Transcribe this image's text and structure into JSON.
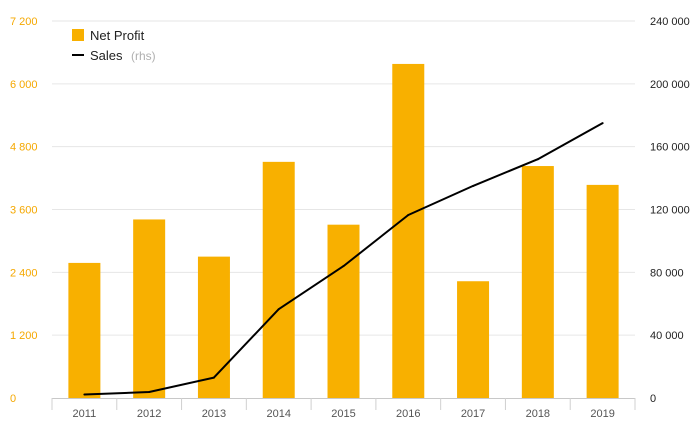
{
  "chart_data": {
    "type": "bar",
    "categories": [
      "2011",
      "2012",
      "2013",
      "2014",
      "2015",
      "2016",
      "2017",
      "2018",
      "2019"
    ],
    "series": [
      {
        "name": "Net Profit",
        "kind": "bar",
        "axis": "left",
        "color": "#f8b000",
        "values": [
          2580,
          3410,
          2700,
          4510,
          3310,
          6380,
          2230,
          4430,
          4070
        ]
      },
      {
        "name": "Sales",
        "kind": "line",
        "axis": "right",
        "color": "#000000",
        "values": [
          2200,
          3800,
          13000,
          56500,
          84000,
          116500,
          135000,
          152000,
          175000
        ]
      }
    ],
    "y_left": {
      "min": 0,
      "max": 7200,
      "ticks": [
        0,
        1200,
        2400,
        3600,
        4800,
        6000,
        7200
      ],
      "tick_labels": [
        "0",
        "1 200",
        "2 400",
        "3 600",
        "4 800",
        "6 000",
        "7 200"
      ]
    },
    "y_right": {
      "min": 0,
      "max": 240000,
      "ticks": [
        0,
        40000,
        80000,
        120000,
        160000,
        200000,
        240000
      ],
      "tick_labels": [
        "0",
        "40 000",
        "80 000",
        "120 000",
        "160 000",
        "200 000",
        "240 000"
      ]
    },
    "legend": {
      "placement": "top-left",
      "items": [
        {
          "label": "Net Profit",
          "note": "",
          "symbol": "square"
        },
        {
          "label": "Sales",
          "note": "(rhs)",
          "symbol": "line"
        }
      ]
    },
    "grid": true,
    "title": "",
    "xlabel": "",
    "ylabel": ""
  }
}
